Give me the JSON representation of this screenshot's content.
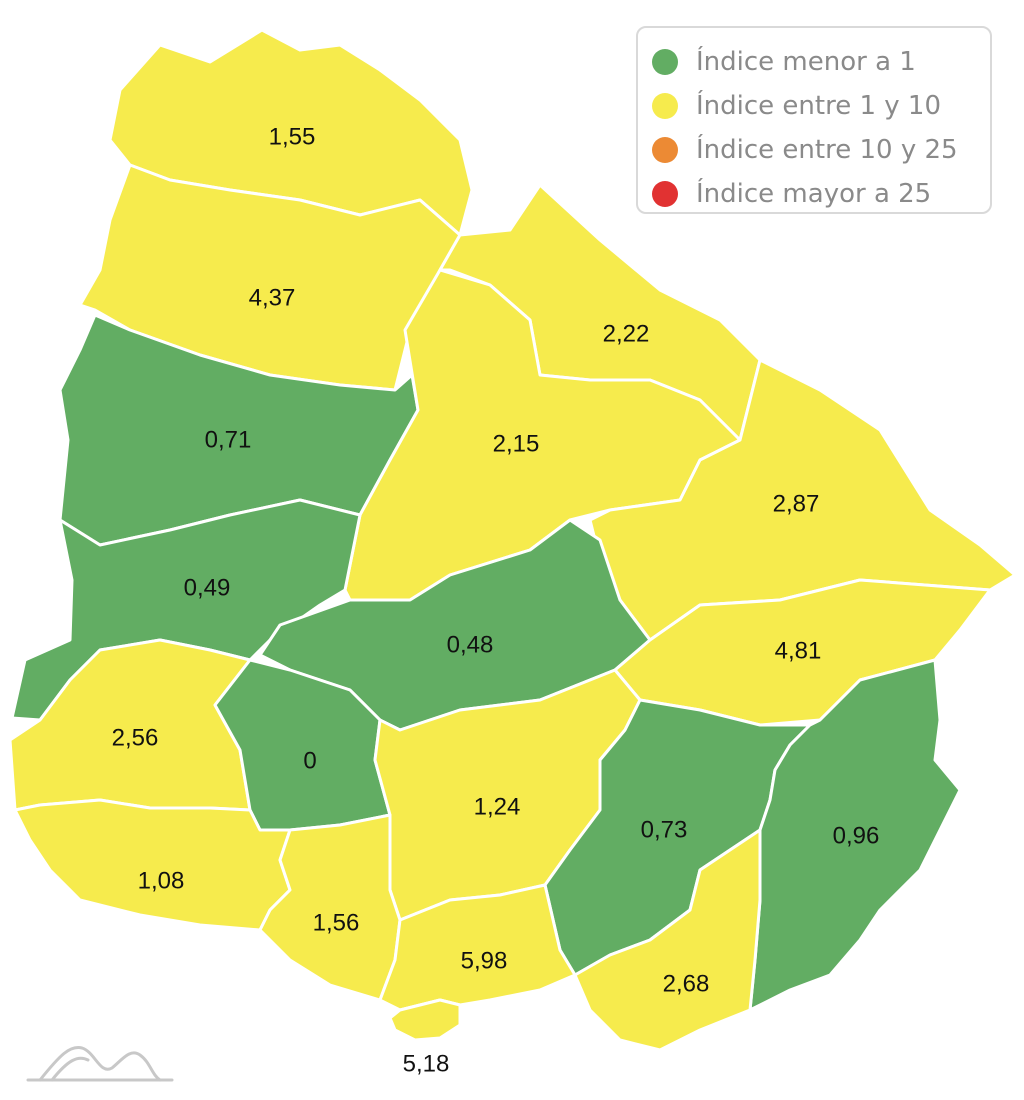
{
  "legend": {
    "items": [
      {
        "label": "Índice menor a 1",
        "color": "#62ad63"
      },
      {
        "label": "Índice entre 1 y 10",
        "color": "#f6eb4d"
      },
      {
        "label": "Índice entre 10 y 25",
        "color": "#ec8a34"
      },
      {
        "label": "Índice mayor a 25",
        "color": "#e13232"
      }
    ]
  },
  "regions": [
    {
      "id": "artigas",
      "value": "1,55",
      "category": "yellow"
    },
    {
      "id": "salto",
      "value": "4,37",
      "category": "yellow"
    },
    {
      "id": "rivera",
      "value": "2,22",
      "category": "yellow"
    },
    {
      "id": "paysandu",
      "value": "0,71",
      "category": "green"
    },
    {
      "id": "tacuarembo",
      "value": "2,15",
      "category": "yellow"
    },
    {
      "id": "cerro-largo",
      "value": "2,87",
      "category": "yellow"
    },
    {
      "id": "rio-negro",
      "value": "0,49",
      "category": "green"
    },
    {
      "id": "durazno",
      "value": "0,48",
      "category": "green"
    },
    {
      "id": "treinta-y-tres",
      "value": "4,81",
      "category": "yellow"
    },
    {
      "id": "soriano",
      "value": "2,56",
      "category": "yellow"
    },
    {
      "id": "flores",
      "value": "0",
      "category": "green"
    },
    {
      "id": "florida",
      "value": "1,24",
      "category": "yellow"
    },
    {
      "id": "lavalleja",
      "value": "0,73",
      "category": "green"
    },
    {
      "id": "rocha",
      "value": "0,96",
      "category": "green"
    },
    {
      "id": "colonia",
      "value": "1,08",
      "category": "yellow"
    },
    {
      "id": "san-jose",
      "value": "1,56",
      "category": "yellow"
    },
    {
      "id": "canelones",
      "value": "5,98",
      "category": "yellow"
    },
    {
      "id": "maldonado",
      "value": "2,68",
      "category": "yellow"
    },
    {
      "id": "montevideo",
      "value": "5,18",
      "category": "yellow"
    }
  ],
  "colors": {
    "yellow": "#f6eb4d",
    "green": "#62ad63",
    "border": "#ffffff"
  },
  "logo": "mountain-logo"
}
